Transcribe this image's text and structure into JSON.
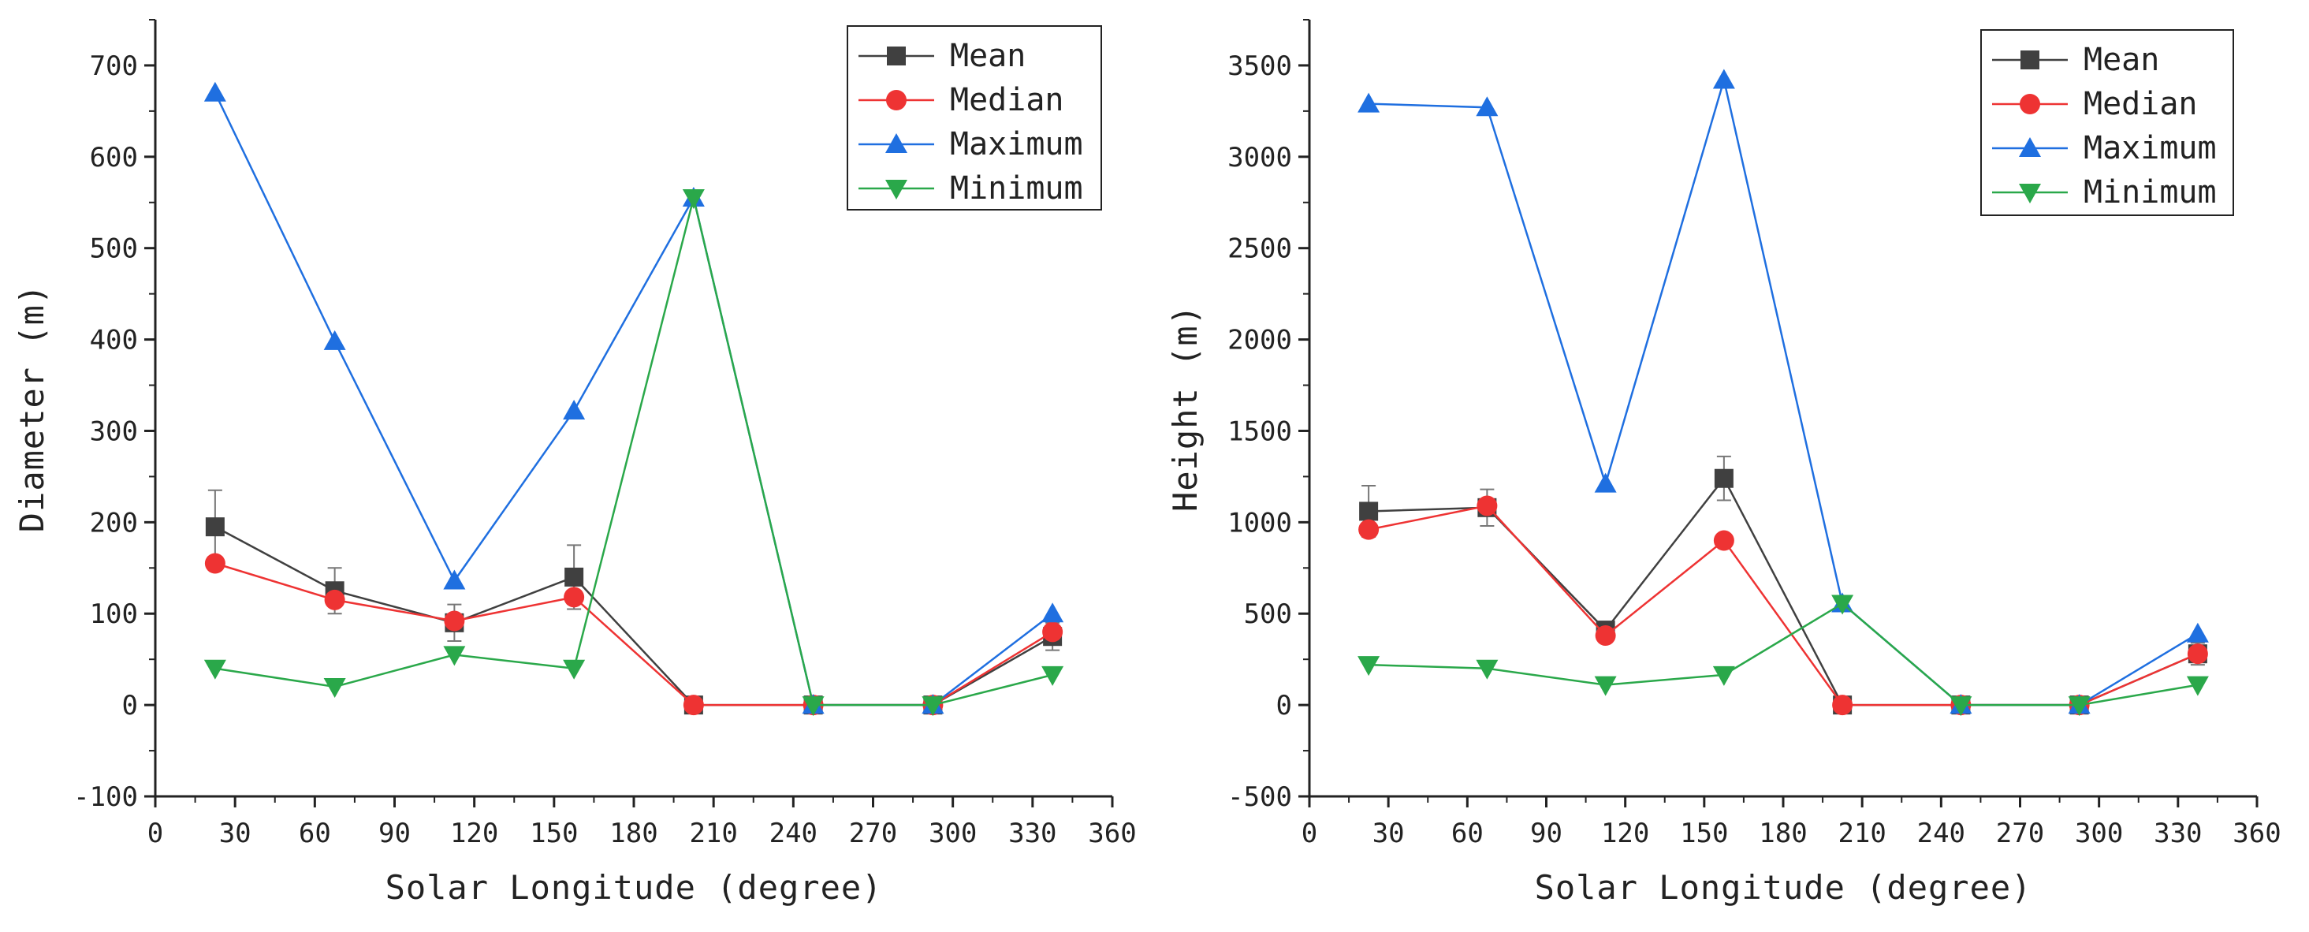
{
  "chart_data": [
    {
      "type": "line",
      "panel": "left",
      "title": "",
      "xlabel": "Solar Longitude (degree)",
      "ylabel": "Diameter (m)",
      "xlim": [
        0,
        360
      ],
      "ylim": [
        -100,
        750
      ],
      "xticks": [
        0,
        30,
        60,
        90,
        120,
        150,
        180,
        210,
        240,
        270,
        300,
        330,
        360
      ],
      "yticks": [
        -100,
        0,
        100,
        200,
        300,
        400,
        500,
        600,
        700
      ],
      "x": [
        22.5,
        67.5,
        112.5,
        157.5,
        202.5,
        247.5,
        292.5,
        337.5
      ],
      "legend_position": "top-right",
      "series": [
        {
          "name": "Mean",
          "color": "#404040",
          "marker": "square",
          "values": [
            195,
            125,
            90,
            140,
            0,
            0,
            0,
            75
          ],
          "error": [
            40,
            25,
            20,
            35,
            0,
            0,
            0,
            15
          ]
        },
        {
          "name": "Median",
          "color": "#ee3333",
          "marker": "circle",
          "values": [
            155,
            115,
            92,
            118,
            0,
            0,
            0,
            80
          ]
        },
        {
          "name": "Maximum",
          "color": "#1f6fe0",
          "marker": "triangle-up",
          "values": [
            670,
            398,
            136,
            322,
            555,
            0,
            0,
            100
          ]
        },
        {
          "name": "Minimum",
          "color": "#2aa84a",
          "marker": "triangle-down",
          "values": [
            40,
            20,
            55,
            40,
            555,
            0,
            0,
            33
          ]
        }
      ]
    },
    {
      "type": "line",
      "panel": "right",
      "title": "",
      "xlabel": "Solar Longitude (degree)",
      "ylabel": "Height (m)",
      "xlim": [
        0,
        360
      ],
      "ylim": [
        -500,
        3750
      ],
      "xticks": [
        0,
        30,
        60,
        90,
        120,
        150,
        180,
        210,
        240,
        270,
        300,
        330,
        360
      ],
      "yticks": [
        -500,
        0,
        500,
        1000,
        1500,
        2000,
        2500,
        3000,
        3500
      ],
      "x": [
        22.5,
        67.5,
        112.5,
        157.5,
        202.5,
        247.5,
        292.5,
        337.5
      ],
      "legend_position": "top-right",
      "series": [
        {
          "name": "Mean",
          "color": "#404040",
          "marker": "square",
          "values": [
            1060,
            1080,
            410,
            1240,
            0,
            0,
            0,
            280
          ],
          "error": [
            140,
            100,
            40,
            120,
            0,
            0,
            0,
            60
          ]
        },
        {
          "name": "Median",
          "color": "#ee3333",
          "marker": "circle",
          "values": [
            960,
            1090,
            380,
            900,
            0,
            0,
            0,
            280
          ]
        },
        {
          "name": "Maximum",
          "color": "#1f6fe0",
          "marker": "triangle-up",
          "values": [
            3290,
            3270,
            1210,
            3420,
            555,
            0,
            0,
            390
          ]
        },
        {
          "name": "Minimum",
          "color": "#2aa84a",
          "marker": "triangle-down",
          "values": [
            220,
            200,
            110,
            165,
            555,
            0,
            0,
            110
          ]
        }
      ]
    }
  ]
}
